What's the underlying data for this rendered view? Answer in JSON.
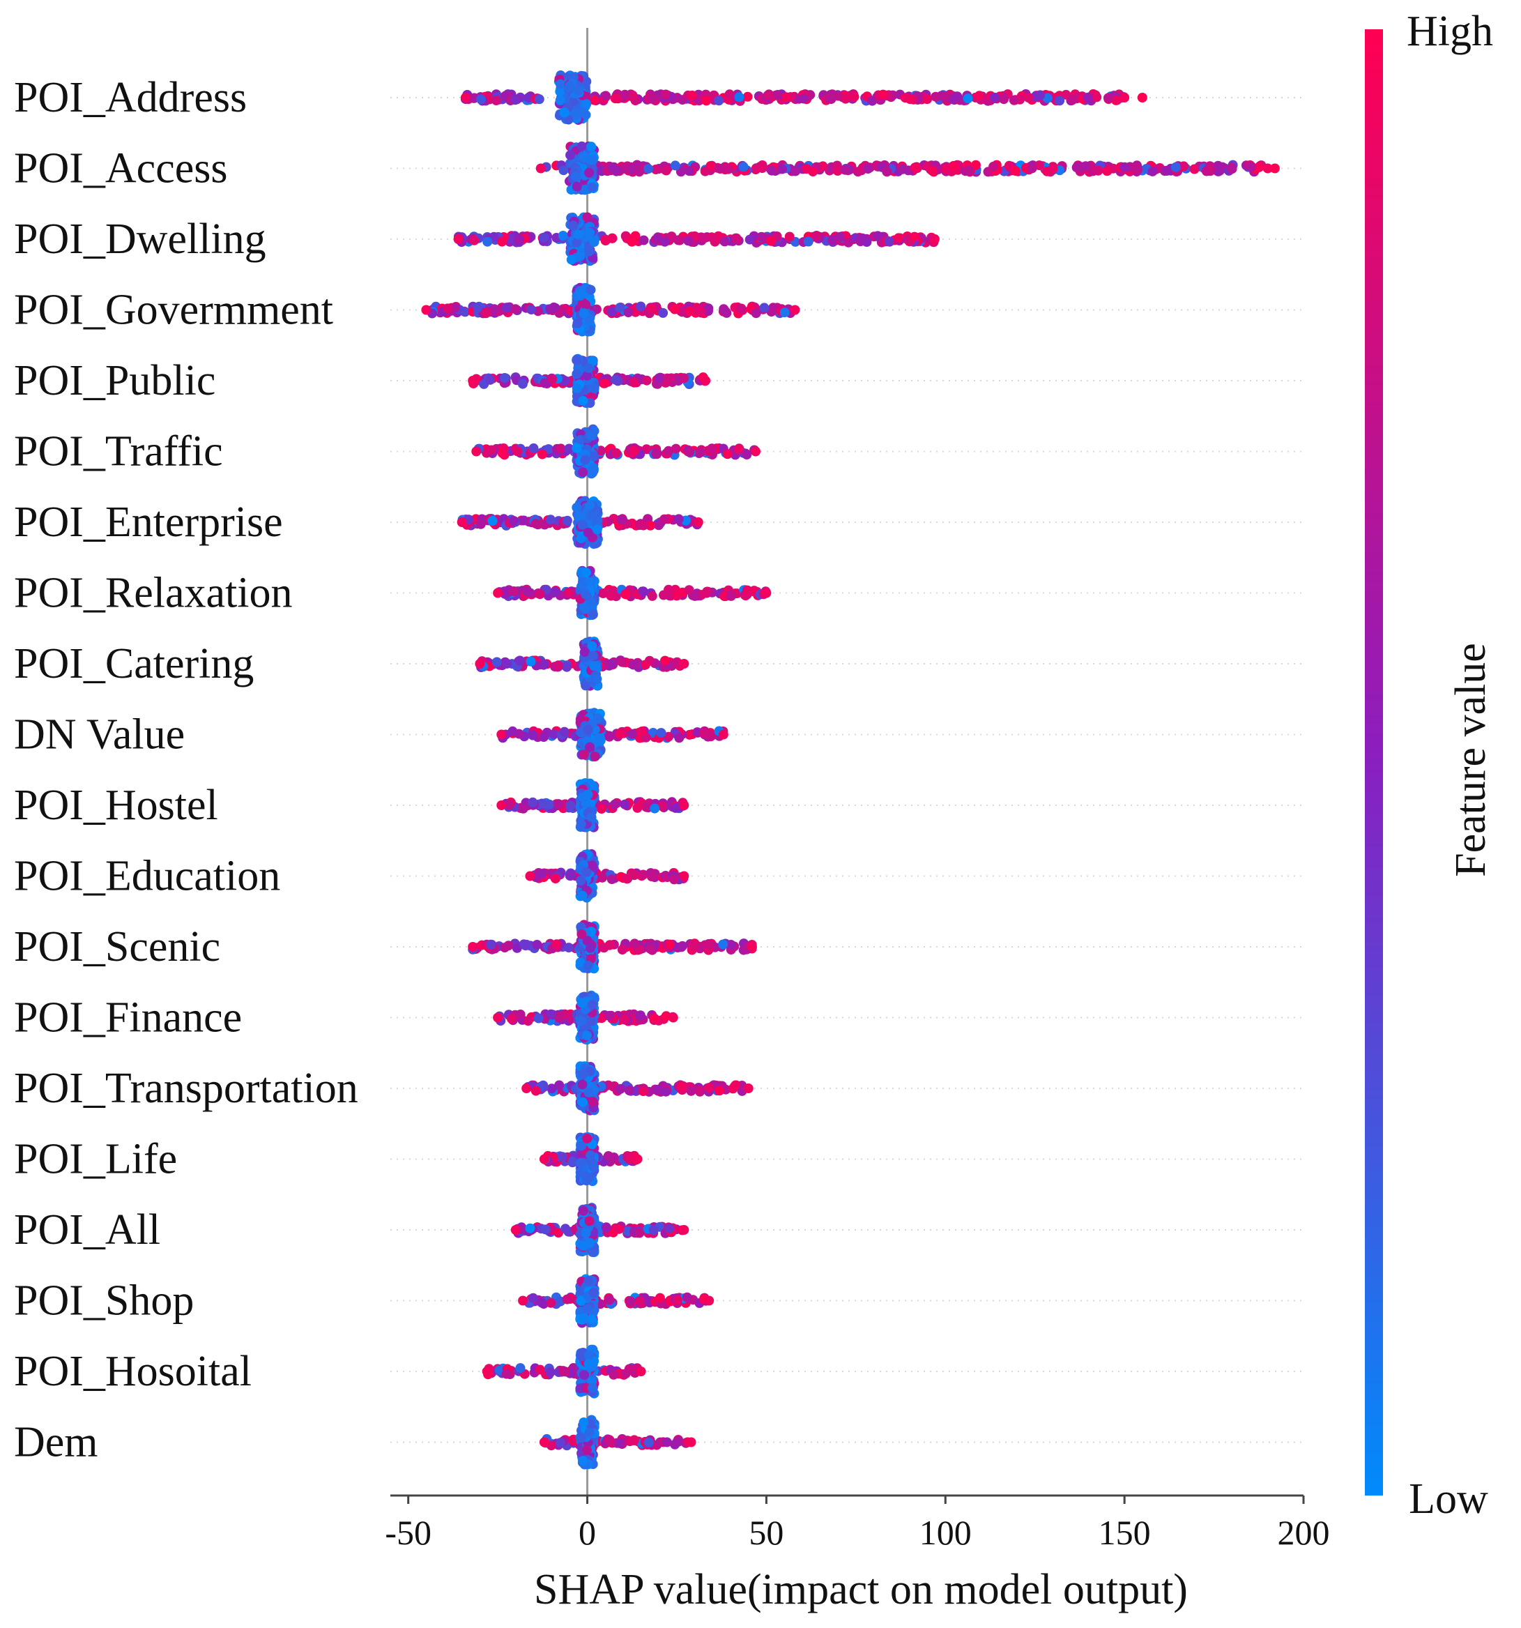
{
  "chart_data": {
    "type": "scatter",
    "subtype": "shap-beeswarm",
    "title": "",
    "xlabel": "SHAP value(impact  on model output)",
    "xlim": [
      -55,
      200
    ],
    "xticks": [
      -50,
      0,
      50,
      100,
      150,
      200
    ],
    "xtick_labels": [
      "-50",
      "0",
      "50",
      "100",
      "150",
      "200"
    ],
    "zero_line": 0,
    "colorbar": {
      "label": "Feature value",
      "high_label": "High",
      "low_label": "Low",
      "high_color": "#ff0052",
      "mid_color": "#8a1fc0",
      "low_color": "#008bfb"
    },
    "features": [
      {
        "name": "POI_Address",
        "min": -34,
        "max": 150,
        "core": [
          -8,
          0
        ],
        "ext_max": 155
      },
      {
        "name": "POI_Access",
        "min": -13,
        "max": 190,
        "core": [
          -5,
          2
        ],
        "ext_max": 192
      },
      {
        "name": "POI_Dwelling",
        "min": -36,
        "max": 97,
        "core": [
          -5,
          2
        ]
      },
      {
        "name": "POI_Govermment",
        "min": -45,
        "max": 58,
        "core": [
          -3,
          1
        ]
      },
      {
        "name": "POI_Public",
        "min": -32,
        "max": 33,
        "core": [
          -3,
          2
        ]
      },
      {
        "name": "POI_Traffic",
        "min": -31,
        "max": 47,
        "core": [
          -3,
          2
        ]
      },
      {
        "name": "POI_Enterprise",
        "min": -35,
        "max": 31,
        "core": [
          -3,
          3
        ]
      },
      {
        "name": "POI_Relaxation",
        "min": -25,
        "max": 50,
        "core": [
          -2,
          2
        ]
      },
      {
        "name": "POI_Catering",
        "min": -30,
        "max": 27,
        "core": [
          -1,
          3
        ]
      },
      {
        "name": "DN Value",
        "min": -24,
        "max": 38,
        "core": [
          -2,
          4
        ]
      },
      {
        "name": "POI_Hostel",
        "min": -24,
        "max": 27,
        "core": [
          -2,
          2
        ]
      },
      {
        "name": "POI_Education",
        "min": -16,
        "max": 27,
        "core": [
          -2,
          2
        ]
      },
      {
        "name": "POI_Scenic",
        "min": -32,
        "max": 46,
        "core": [
          -2,
          2
        ]
      },
      {
        "name": "POI_Finance",
        "min": -25,
        "max": 24,
        "core": [
          -2,
          2
        ]
      },
      {
        "name": "POI_Transportation",
        "min": -17,
        "max": 45,
        "core": [
          -2,
          2
        ]
      },
      {
        "name": "POI_Life",
        "min": -12,
        "max": 14,
        "core": [
          -2,
          2
        ]
      },
      {
        "name": "POI_All",
        "min": -20,
        "max": 27,
        "core": [
          -2,
          2
        ]
      },
      {
        "name": "POI_Shop",
        "min": -18,
        "max": 34,
        "core": [
          -2,
          2
        ]
      },
      {
        "name": "POI_Hosoital",
        "min": -28,
        "max": 15,
        "core": [
          -2,
          2
        ]
      },
      {
        "name": "Dem",
        "min": -12,
        "max": 29,
        "core": [
          -2,
          2
        ]
      }
    ]
  }
}
